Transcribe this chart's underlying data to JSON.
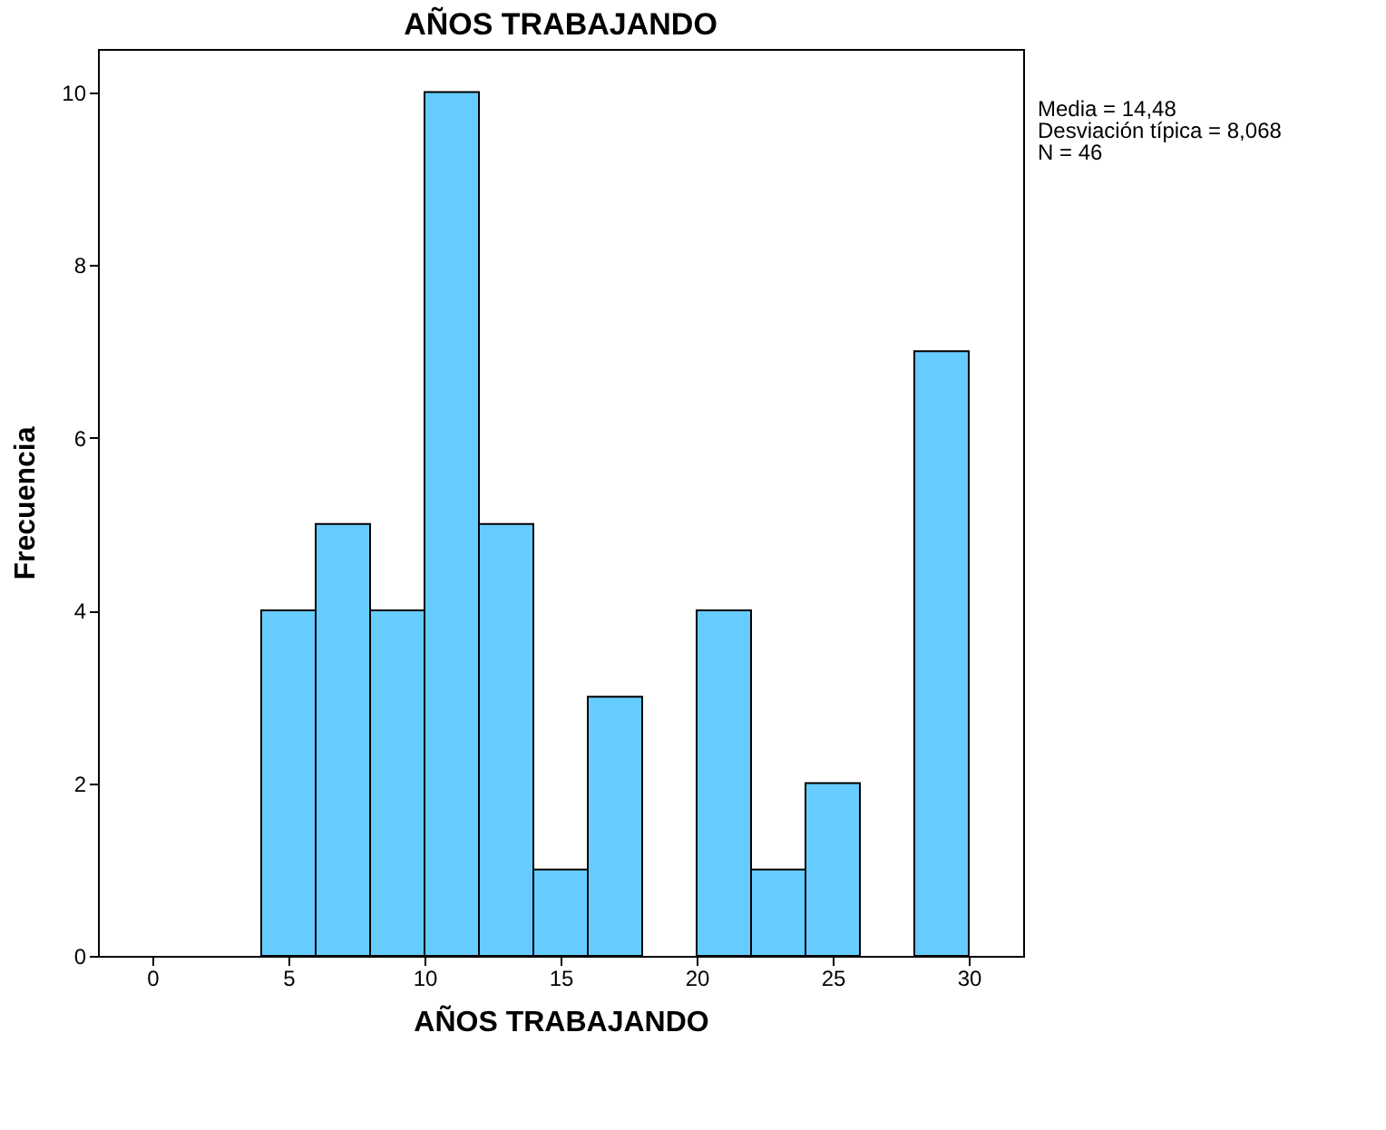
{
  "chart_data": {
    "type": "histogram",
    "title": "AÑOS TRABAJANDO",
    "xlabel": "AÑOS TRABAJANDO",
    "ylabel": "Frecuencia",
    "bins": [
      4,
      6,
      8,
      10,
      12,
      14,
      16,
      18,
      20,
      22,
      24,
      26,
      28,
      30
    ],
    "values": [
      4,
      5,
      4,
      10,
      5,
      1,
      3,
      0,
      4,
      1,
      2,
      0,
      7
    ],
    "color": "#66ccff",
    "xlim": [
      -2,
      32
    ],
    "xticks": [
      0,
      5,
      10,
      15,
      20,
      25,
      30
    ],
    "ylim": [
      0,
      10.5
    ],
    "yticks": [
      0,
      2,
      4,
      6,
      8,
      10
    ],
    "grid": false,
    "annotations": [
      "Media = 14,48",
      "Desviación típica = 8,068",
      "N = 46"
    ]
  }
}
